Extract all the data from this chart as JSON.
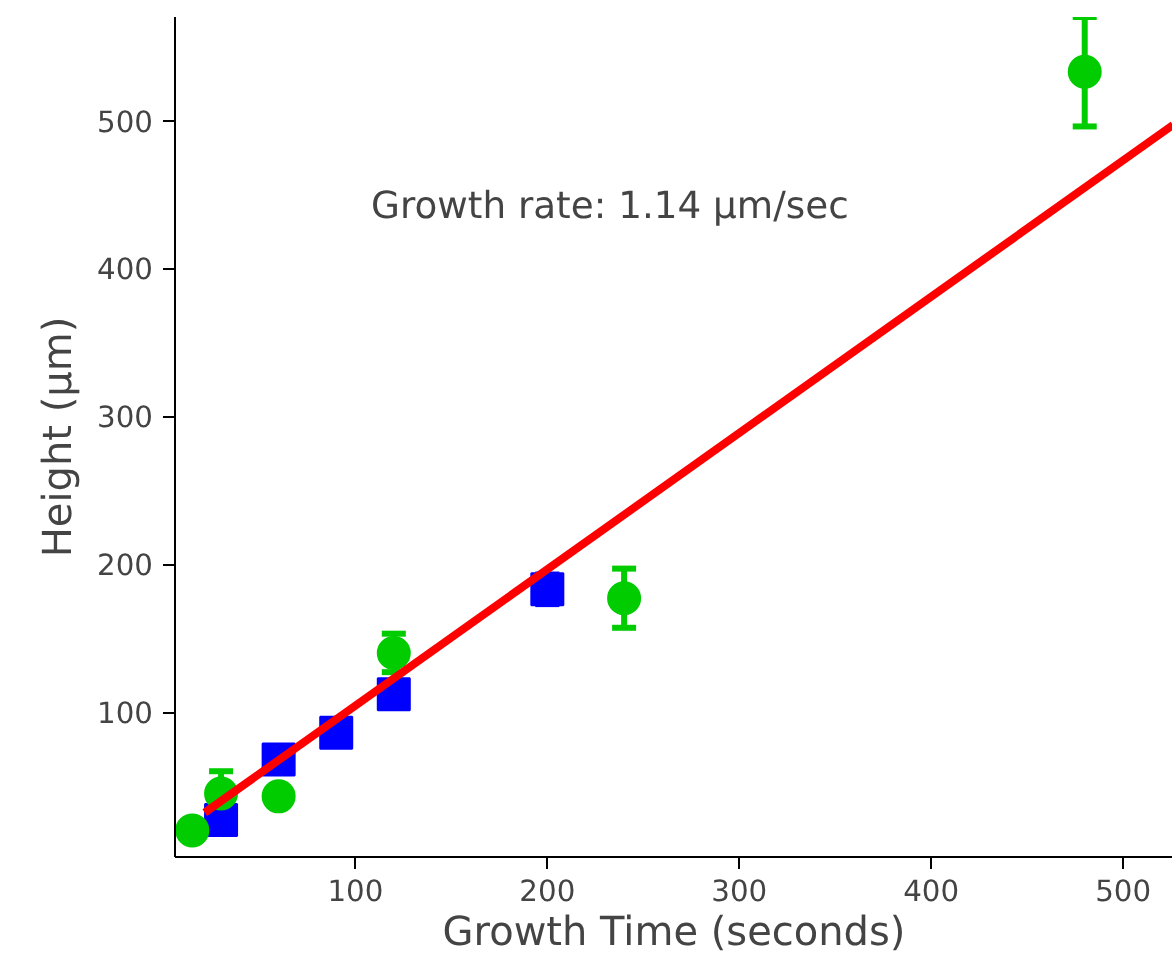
{
  "chart_data": {
    "type": "scatter",
    "xlabel": "Growth Time (seconds)",
    "ylabel": "Height (μm)",
    "annotations": [
      "Growth rate: 1.14 μm/sec"
    ],
    "xlim": [
      6,
      526
    ],
    "ylim": [
      2,
      570
    ],
    "xticks": [
      100,
      200,
      300,
      400,
      500
    ],
    "yticks": [
      100,
      200,
      300,
      400,
      500
    ],
    "grid": false,
    "series": [
      {
        "marker": "square",
        "color": "#0000ff",
        "x": [
          30,
          60,
          90,
          120,
          200
        ],
        "values": [
          27,
          68,
          86,
          112,
          183
        ],
        "errors": [
          null,
          null,
          null,
          null,
          10
        ]
      },
      {
        "marker": "circle",
        "color": "#00cc00",
        "x": [
          15,
          30,
          60,
          120,
          240,
          480
        ],
        "values": [
          20,
          45,
          43,
          140,
          177,
          533
        ],
        "errors": [
          null,
          15,
          null,
          13,
          20,
          37
        ]
      },
      {
        "type": "line",
        "color": "#ff0000",
        "x": [
          21.5,
          526
        ],
        "values": [
          32,
          497
        ]
      }
    ]
  }
}
